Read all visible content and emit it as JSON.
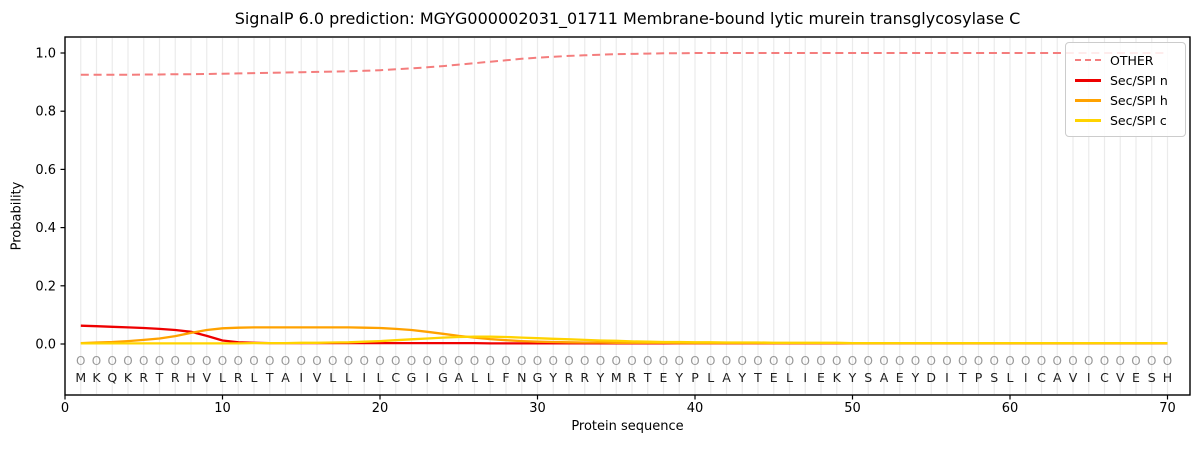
{
  "figure": {
    "kind": "SignalP 6.0 signal-peptide prediction plot"
  },
  "chart_data": {
    "type": "line",
    "title": "SignalP 6.0 prediction: MGYG000002031_01711 Membrane-bound lytic murein transglycosylase C",
    "xlabel": "Protein sequence",
    "ylabel": "Probability",
    "xlim": [
      0,
      71.5
    ],
    "ylim": [
      -0.175,
      1.055
    ],
    "x_ticks": [
      0,
      10,
      20,
      30,
      40,
      50,
      60,
      70
    ],
    "y_ticks": [
      0.0,
      0.2,
      0.4,
      0.6,
      0.8,
      1.0
    ],
    "grid": "vertical line per residue, no horizontal grid",
    "legend_position": "upper-right",
    "x": [
      1,
      2,
      3,
      4,
      5,
      6,
      7,
      8,
      9,
      10,
      11,
      12,
      13,
      14,
      15,
      16,
      17,
      18,
      19,
      20,
      21,
      22,
      23,
      24,
      25,
      26,
      27,
      28,
      29,
      30,
      31,
      32,
      33,
      34,
      35,
      36,
      37,
      38,
      39,
      40,
      41,
      42,
      43,
      44,
      45,
      46,
      47,
      48,
      49,
      50,
      51,
      52,
      53,
      54,
      55,
      56,
      57,
      58,
      59,
      60,
      61,
      62,
      63,
      64,
      65,
      66,
      67,
      68,
      69,
      70
    ],
    "series": [
      {
        "name": "OTHER",
        "color": "#f47d7d",
        "style": "dashed",
        "linewidth": 2,
        "values": [
          0.925,
          0.925,
          0.925,
          0.925,
          0.926,
          0.926,
          0.927,
          0.927,
          0.928,
          0.929,
          0.93,
          0.931,
          0.932,
          0.933,
          0.934,
          0.935,
          0.936,
          0.937,
          0.939,
          0.941,
          0.944,
          0.947,
          0.951,
          0.955,
          0.96,
          0.965,
          0.97,
          0.975,
          0.98,
          0.984,
          0.987,
          0.99,
          0.992,
          0.994,
          0.996,
          0.997,
          0.998,
          0.999,
          0.999,
          1.0,
          1.0,
          1.0,
          1.0,
          1.0,
          1.0,
          1.0,
          1.0,
          1.0,
          1.0,
          1.0,
          1.0,
          1.0,
          1.0,
          1.0,
          1.0,
          1.0,
          1.0,
          1.0,
          1.0,
          1.0,
          1.0,
          1.0,
          1.0,
          1.0,
          1.0,
          1.0,
          1.0,
          1.0,
          1.0,
          1.0
        ]
      },
      {
        "name": "Sec/SPI n",
        "color": "#ee0000",
        "style": "solid",
        "linewidth": 2.3,
        "values": [
          0.063,
          0.061,
          0.059,
          0.057,
          0.055,
          0.052,
          0.048,
          0.042,
          0.028,
          0.012,
          0.006,
          0.004,
          0.003,
          0.003,
          0.003,
          0.003,
          0.003,
          0.003,
          0.003,
          0.003,
          0.003,
          0.003,
          0.003,
          0.003,
          0.003,
          0.003,
          0.002,
          0.002,
          0.002,
          0.002,
          0.002,
          0.002,
          0.002,
          0.002,
          0.002,
          0.002,
          0.002,
          0.002,
          0.002,
          0.002,
          0.002,
          0.002,
          0.002,
          0.002,
          0.002,
          0.002,
          0.002,
          0.002,
          0.002,
          0.002,
          0.002,
          0.002,
          0.002,
          0.002,
          0.002,
          0.002,
          0.002,
          0.002,
          0.002,
          0.002,
          0.002,
          0.002,
          0.002,
          0.002,
          0.002,
          0.002,
          0.002,
          0.002,
          0.002,
          0.002
        ]
      },
      {
        "name": "Sec/SPI h",
        "color": "#ffa200",
        "style": "solid",
        "linewidth": 2.3,
        "values": [
          0.003,
          0.005,
          0.007,
          0.01,
          0.014,
          0.019,
          0.027,
          0.038,
          0.048,
          0.054,
          0.056,
          0.057,
          0.057,
          0.057,
          0.057,
          0.057,
          0.057,
          0.057,
          0.056,
          0.055,
          0.052,
          0.048,
          0.042,
          0.035,
          0.028,
          0.022,
          0.017,
          0.013,
          0.01,
          0.008,
          0.007,
          0.006,
          0.005,
          0.005,
          0.004,
          0.004,
          0.004,
          0.004,
          0.003,
          0.003,
          0.003,
          0.003,
          0.003,
          0.003,
          0.003,
          0.003,
          0.003,
          0.003,
          0.003,
          0.003,
          0.003,
          0.003,
          0.003,
          0.003,
          0.003,
          0.003,
          0.003,
          0.003,
          0.003,
          0.003,
          0.003,
          0.003,
          0.003,
          0.003,
          0.003,
          0.003,
          0.003,
          0.003,
          0.003,
          0.003
        ]
      },
      {
        "name": "Sec/SPI c",
        "color": "#ffd300",
        "style": "solid",
        "linewidth": 2.3,
        "values": [
          0.002,
          0.002,
          0.002,
          0.002,
          0.002,
          0.002,
          0.002,
          0.002,
          0.002,
          0.002,
          0.002,
          0.003,
          0.003,
          0.003,
          0.004,
          0.004,
          0.005,
          0.006,
          0.008,
          0.01,
          0.013,
          0.016,
          0.019,
          0.022,
          0.024,
          0.025,
          0.025,
          0.024,
          0.022,
          0.02,
          0.018,
          0.016,
          0.014,
          0.012,
          0.011,
          0.009,
          0.008,
          0.007,
          0.007,
          0.006,
          0.006,
          0.005,
          0.005,
          0.005,
          0.004,
          0.004,
          0.004,
          0.004,
          0.004,
          0.003,
          0.003,
          0.003,
          0.003,
          0.003,
          0.003,
          0.003,
          0.003,
          0.003,
          0.003,
          0.003,
          0.003,
          0.003,
          0.003,
          0.003,
          0.003,
          0.003,
          0.003,
          0.003,
          0.003,
          0.003
        ]
      }
    ],
    "sequence": "MKQKRTRHVLRLTAIVLLILCGIGALLFNGYRRYMRTEYPLAYTELIEKYSAEYDITPSLICAVICVESH",
    "residue_annotation_marker": "O",
    "colors": {
      "grid": "#ebebeb",
      "spine": "#000000",
      "marker_gray": "#999999",
      "sequence_text": "#202020"
    }
  }
}
